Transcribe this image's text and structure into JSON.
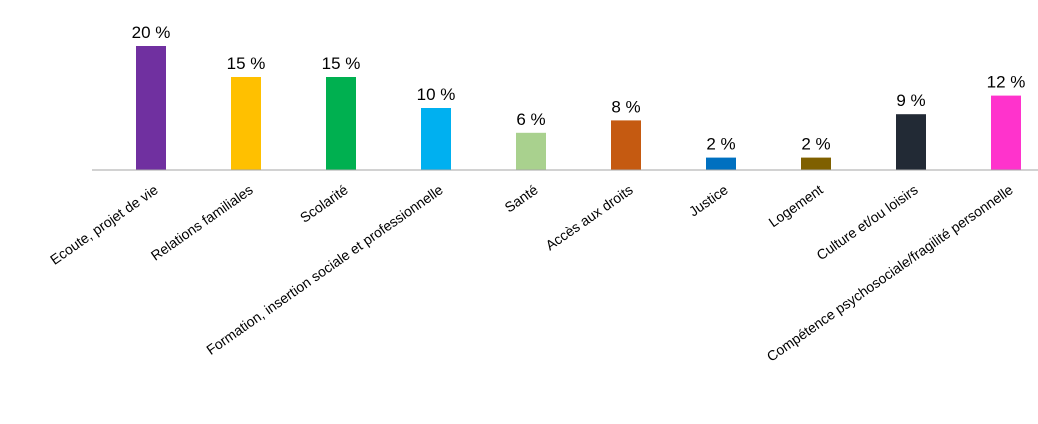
{
  "chart_data": {
    "type": "bar",
    "title": "",
    "xlabel": "",
    "ylabel": "",
    "ylim": [
      0,
      20
    ],
    "grid": false,
    "legend": "none",
    "value_suffix": " %",
    "categories": [
      "Ecoute, projet de vie",
      "Relations familiales",
      "Scolarité",
      "Formation, insertion sociale et professionnelle",
      "Santé",
      "Accès aux droits",
      "Justice",
      "Logement",
      "Culture et/ou loisirs",
      "Compétence psychosociale/fragilité personnelle"
    ],
    "values": [
      20,
      15,
      15,
      10,
      6,
      8,
      2,
      2,
      9,
      12
    ],
    "colors": [
      "#7030a0",
      "#ffc000",
      "#00b050",
      "#00b0f0",
      "#a9d18e",
      "#c55a11",
      "#0070c0",
      "#7f6000",
      "#222a35",
      "#ff33cc"
    ]
  }
}
